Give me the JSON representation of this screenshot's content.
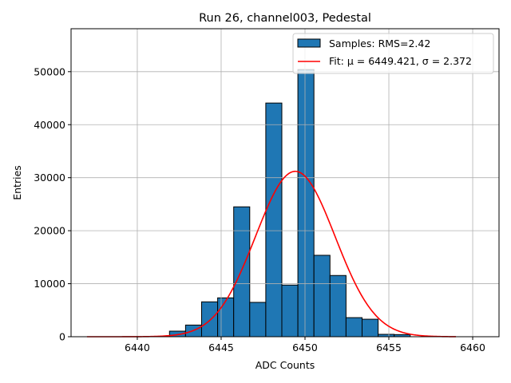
{
  "chart_data": {
    "type": "bar",
    "title": "Run 26, channel003, Pedestal",
    "xlabel": "ADC Counts",
    "ylabel": "Entries",
    "xlim": [
      6436.05,
      6461.57
    ],
    "ylim": [
      0,
      58100
    ],
    "xticks": [
      6440,
      6445,
      6450,
      6455,
      6460
    ],
    "yticks": [
      0,
      10000,
      20000,
      30000,
      40000,
      50000
    ],
    "grid": true,
    "legend_position": "top-right",
    "histogram": {
      "name": "Samples: RMS=2.42",
      "color": "#1f77b4",
      "bin_start": 6441.92,
      "bin_width": 0.957,
      "values": [
        1050,
        2200,
        6580,
        7330,
        24500,
        6480,
        44080,
        9740,
        50400,
        15360,
        11550,
        3600,
        3300,
        450,
        400
      ]
    },
    "fit": {
      "name": "Fit: μ = 6449.421, σ = 2.372",
      "color": "#ff0000",
      "mu": 6449.421,
      "sigma": 2.372,
      "amplitude": 31200,
      "x_range": [
        6437,
        6459
      ]
    }
  }
}
